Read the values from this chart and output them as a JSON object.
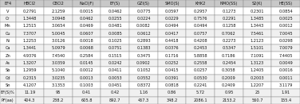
{
  "header": [
    "EF4",
    "HBCl2",
    "CBCl2",
    "NaCl(F)",
    "EF(S)",
    "GZI(S)",
    "SMO(S)",
    "KHK2",
    "NMO(SS)",
    "S2(K)",
    "HE(SS)"
  ],
  "rows": [
    [
      "V",
      "0.2791",
      "2.1259",
      "0.0015",
      "0.0462",
      "0.0775",
      "0.0597",
      "0.2957",
      "0.1273",
      "0.2301",
      "0.0854"
    ],
    [
      "Cr",
      "1.3448",
      "3.0948",
      "0.0462",
      "0.0255",
      "0.0224",
      "0.0229",
      "0.7576",
      "0.2291",
      "1.3485",
      "0.0025"
    ],
    [
      "Mn",
      "1.2515",
      "3.0654",
      "0.0469",
      "0.0481",
      "0.0082",
      "0.0494",
      "0.0494",
      "0.1258",
      "1.3443",
      "0.0012"
    ],
    [
      "Cu",
      "7.3707",
      "5.0045",
      "0.0607",
      "0.0085",
      "0.0612",
      "0.0417",
      "0.0757",
      "0.7062",
      "7.5461",
      "7.0045"
    ],
    [
      "Ni",
      "1.2253",
      "3.0126",
      "0.0018",
      "0.1025",
      "0.2893",
      "0.4418",
      "0.4208",
      "0.2273",
      "1.2123",
      "0.0298"
    ],
    [
      "Ca",
      "1.3441",
      "5.0979",
      "0.0068",
      "0.0751",
      "0.1383",
      "0.0376",
      "0.2453",
      "0.5347",
      "1.5101",
      "7.0079"
    ],
    [
      "Zn",
      "4.9376",
      "7.4540",
      "0.2584",
      "0.1515",
      "0.3475",
      "0.1716",
      "5.8858",
      "0.7186",
      "7.1091",
      "7.4405"
    ],
    [
      "As",
      "1.3207",
      "3.0359",
      "0.0145",
      "0.0242",
      "0.0902",
      "0.0252",
      "0.2558",
      "0.2454",
      "1.3123",
      "0.0049"
    ],
    [
      "Sb",
      "1.2959",
      "5.1040",
      "0.0012",
      "0.0411",
      "0.1052",
      "0.0415",
      "0.0257",
      "0.3058",
      "1.2405",
      "0.0016"
    ],
    [
      "Cd",
      "0.2315",
      "3.0235",
      "0.0013",
      "0.0053",
      "0.0552",
      "0.0391",
      "0.0530",
      "0.2009",
      "0.2003",
      "0.0011"
    ],
    [
      "Sn",
      "4.1207",
      "3.1353",
      "0.1003",
      "0.0451",
      "0.8372",
      "0.0818",
      "0.2241",
      "0.2409",
      "1.2207",
      "3.1179"
    ],
    [
      "EF(S)%",
      "11.19",
      "95",
      "0.41",
      "0.42",
      "1.16",
      "0.86",
      "5.72",
      "0.95",
      "25",
      "1.91"
    ],
    [
      "PF(aa)",
      "404.3",
      "238.2",
      "605.8",
      "892.7",
      "457.3",
      "348.2",
      "2086.1",
      "2153.2",
      "560.7",
      "155.4"
    ]
  ],
  "font_size": 3.6,
  "header_bg": "#c8c8c8",
  "odd_row_bg": "#f0f0f0",
  "even_row_bg": "#ffffff",
  "last2_bg": "#e8e8e8",
  "edge_color": "#888888",
  "text_color": "#111111",
  "line_width": 0.3,
  "fig_bg": "#a0a0a0"
}
